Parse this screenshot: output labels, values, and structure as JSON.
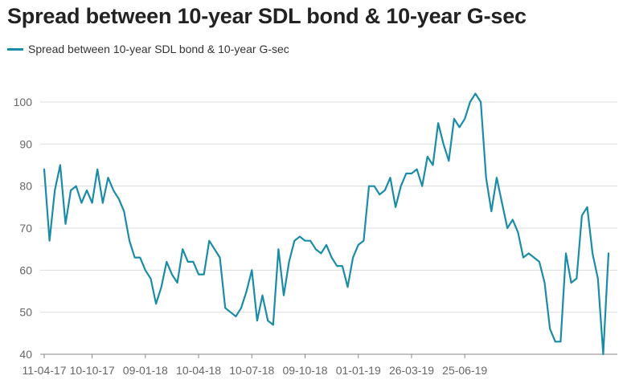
{
  "chart_data": {
    "type": "line",
    "title": "Spread between 10-year SDL bond & 10-year G-sec",
    "xlabel": "",
    "ylabel": "",
    "ylim": [
      40,
      100
    ],
    "yticks": [
      40,
      50,
      60,
      70,
      80,
      90,
      100
    ],
    "grid": true,
    "legend_position": "top-left",
    "xtick_labels": [
      "11-04-17",
      "10-10-17",
      "09-01-18",
      "10-04-18",
      "10-07-18",
      "09-10-18",
      "01-01-19",
      "26-03-19",
      "25-06-19"
    ],
    "xtick_positions": [
      0,
      9,
      19,
      29,
      39,
      49,
      59,
      69,
      79
    ],
    "series": [
      {
        "name": "Spread between 10-year SDL bond & 10-year G-sec",
        "color": "#1a8ca8",
        "values": [
          84,
          67,
          79,
          85,
          71,
          79,
          80,
          76,
          79,
          76,
          84,
          76,
          82,
          79,
          77,
          74,
          67,
          63,
          63,
          60,
          58,
          52,
          56,
          62,
          59,
          57,
          65,
          62,
          62,
          59,
          59,
          67,
          65,
          63,
          51,
          50,
          49,
          51,
          55,
          60,
          48,
          54,
          48,
          47,
          65,
          54,
          62,
          67,
          68,
          67,
          67,
          65,
          64,
          66,
          63,
          61,
          61,
          56,
          63,
          66,
          67,
          80,
          80,
          78,
          79,
          82,
          75,
          80,
          83,
          83,
          84,
          80,
          87,
          85,
          95,
          90,
          86,
          96,
          94,
          96,
          100,
          102,
          100,
          82,
          74,
          82,
          76,
          70,
          72,
          69,
          63,
          64,
          63,
          62,
          57,
          46,
          43,
          43,
          64,
          57,
          58,
          73,
          75,
          64,
          58,
          40,
          64
        ]
      }
    ]
  }
}
